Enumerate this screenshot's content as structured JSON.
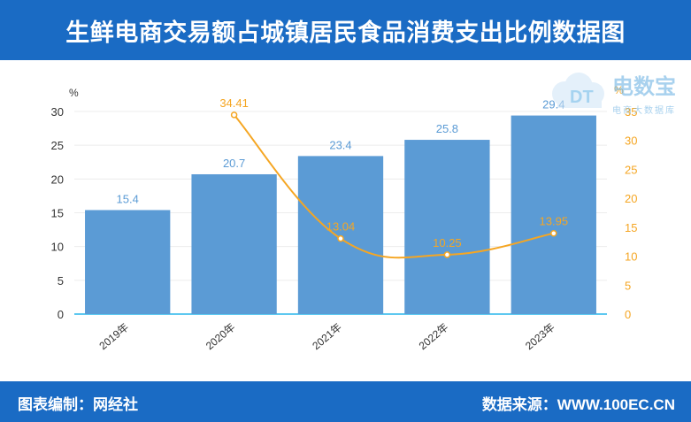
{
  "title": "生鲜电商交易额占城镇居民食品消费支出比例数据图",
  "footer": {
    "compiler": "图表编制：网经社",
    "source": "数据来源：WWW.100EC.CN"
  },
  "logo": {
    "text": "电数宝",
    "badge": "DT",
    "subtitle": "电商大数据库"
  },
  "chart_data": {
    "type": "bar",
    "categories": [
      "2019年",
      "2020年",
      "2021年",
      "2022年",
      "2023年"
    ],
    "series": [
      {
        "values": [
          15.4,
          20.7,
          23.4,
          25.8,
          29.4
        ],
        "color": "#5b9bd5",
        "kind": "bar",
        "axis": "left"
      },
      {
        "values": [
          null,
          34.41,
          13.04,
          10.25,
          13.95
        ],
        "color": "#f5a623",
        "kind": "line",
        "axis": "right"
      }
    ],
    "left_axis": {
      "unit": "%",
      "min": 0,
      "max": 30,
      "ticks": [
        0,
        5,
        10,
        15,
        20,
        25,
        30
      ]
    },
    "right_axis": {
      "unit": "%",
      "min": 0,
      "max": 35,
      "ticks": [
        0,
        5,
        10,
        15,
        20,
        25,
        30,
        35
      ]
    },
    "grid": true
  }
}
